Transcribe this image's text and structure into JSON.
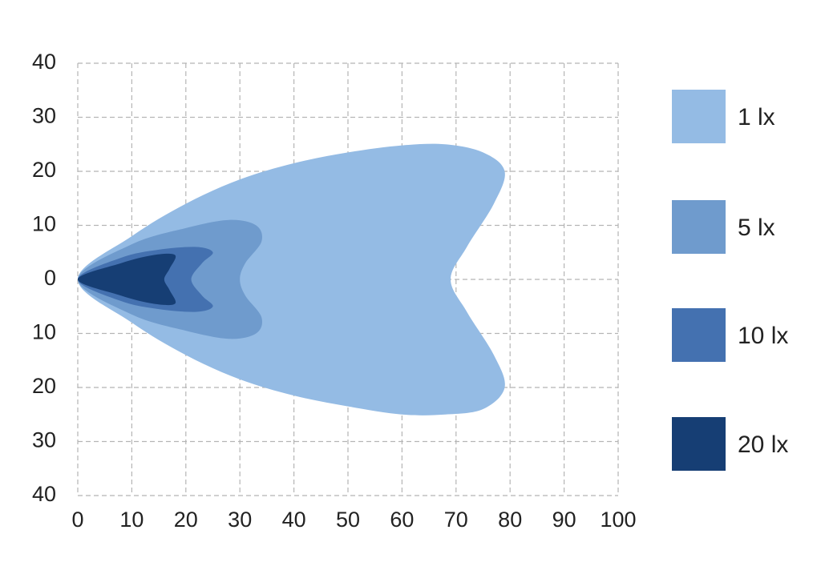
{
  "chart_data": {
    "type": "contour",
    "xlim": [
      0,
      100
    ],
    "xticks": [
      0,
      10,
      20,
      30,
      40,
      50,
      60,
      70,
      80,
      90,
      100
    ],
    "ylim": [
      -40,
      40
    ],
    "yticks": [
      {
        "value": -40,
        "label": "40"
      },
      {
        "value": -30,
        "label": "30"
      },
      {
        "value": -20,
        "label": "20"
      },
      {
        "value": -10,
        "label": "10"
      },
      0,
      10,
      20,
      30,
      40
    ],
    "grid": true,
    "legend": "right",
    "series": [
      {
        "name": "1 lx",
        "color": "#94bbe4",
        "x": [
          0,
          10,
          20,
          30,
          40,
          50,
          60,
          68,
          75,
          79,
          77,
          72,
          69,
          72,
          77,
          79,
          75,
          68,
          60,
          50,
          40,
          30,
          20,
          10
        ],
        "y": [
          0,
          8,
          14,
          18.5,
          21.5,
          23.5,
          24.8,
          25,
          23.5,
          20,
          14,
          6,
          0,
          -6,
          -14,
          -20,
          -24,
          -25,
          -25,
          -23.5,
          -21.5,
          -18.5,
          -14,
          -8
        ]
      },
      {
        "name": "5 lx",
        "color": "#6f9bcd",
        "x": [
          0,
          10,
          20,
          28,
          33,
          34,
          31,
          30,
          31,
          34,
          33,
          28,
          20,
          10
        ],
        "y": [
          0,
          6.5,
          9.5,
          11,
          10,
          7,
          3,
          0,
          -3,
          -7,
          -10,
          -11,
          -9.5,
          -6.5
        ]
      },
      {
        "name": "10 lx",
        "color": "#4471b0",
        "x": [
          0,
          8,
          15,
          22,
          25,
          23,
          21,
          23,
          25,
          22,
          15,
          8
        ],
        "y": [
          0,
          4,
          5.5,
          6,
          5,
          3,
          0,
          -3,
          -5,
          -6,
          -5.5,
          -4
        ]
      },
      {
        "name": "20 lx",
        "color": "#163e74",
        "x": [
          0,
          8,
          14,
          18,
          17,
          16,
          17,
          18,
          14,
          8
        ],
        "y": [
          0,
          3,
          4.5,
          4.5,
          2,
          0,
          -2,
          -4.5,
          -4.5,
          -3
        ]
      }
    ]
  }
}
